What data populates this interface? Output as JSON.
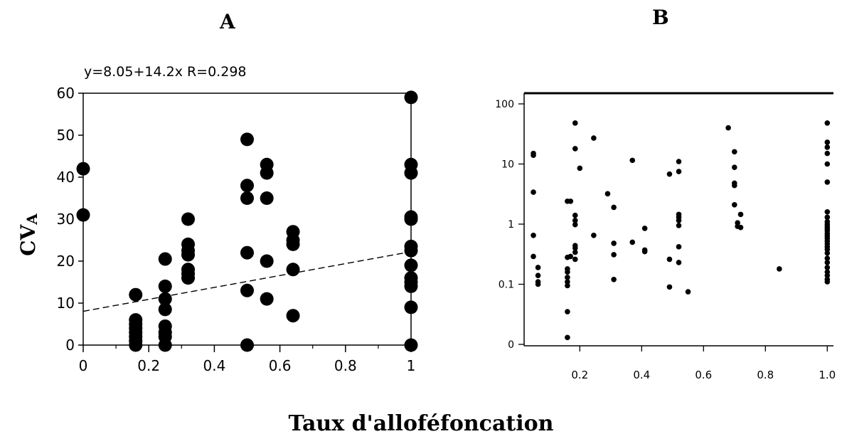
{
  "x_axis_title": "Taux d'alloféfoncation",
  "y_axis_title_main": "CV",
  "y_axis_title_sub": "A",
  "colors": {
    "points": "#000000",
    "axes": "#000000",
    "background": "#ffffff"
  },
  "chart_data": [
    {
      "panel": "A",
      "type": "scatter",
      "title": "A",
      "annotation": "y=8.05+14.2x R=0.298",
      "xlim": [
        0,
        1
      ],
      "ylim": [
        0,
        60
      ],
      "xticks": [
        0,
        0.2,
        0.4,
        0.6,
        0.8,
        1
      ],
      "xtick_labels": [
        "0",
        "0.2",
        "0.4",
        "0.6",
        "0.8",
        "1"
      ],
      "yticks": [
        0,
        10,
        20,
        30,
        40,
        50,
        60
      ],
      "ytick_labels": [
        "0",
        "10",
        "20",
        "30",
        "40",
        "50",
        "60"
      ],
      "grid": false,
      "regression": {
        "intercept": 8.05,
        "slope": 14.2,
        "r": 0.298,
        "style": "dashed"
      },
      "points": [
        [
          0,
          42
        ],
        [
          0,
          31
        ],
        [
          0.16,
          12
        ],
        [
          0.16,
          6
        ],
        [
          0.16,
          5
        ],
        [
          0.16,
          4
        ],
        [
          0.16,
          3
        ],
        [
          0.16,
          2
        ],
        [
          0.16,
          1
        ],
        [
          0.16,
          0
        ],
        [
          0.25,
          20.5
        ],
        [
          0.25,
          14
        ],
        [
          0.25,
          11
        ],
        [
          0.25,
          8.5
        ],
        [
          0.25,
          4.5
        ],
        [
          0.25,
          3
        ],
        [
          0.25,
          2
        ],
        [
          0.25,
          0
        ],
        [
          0.32,
          30
        ],
        [
          0.32,
          24
        ],
        [
          0.32,
          22.5
        ],
        [
          0.32,
          21.5
        ],
        [
          0.32,
          18
        ],
        [
          0.32,
          17
        ],
        [
          0.32,
          16
        ],
        [
          0.5,
          49
        ],
        [
          0.5,
          38
        ],
        [
          0.5,
          35
        ],
        [
          0.5,
          22
        ],
        [
          0.5,
          13
        ],
        [
          0.5,
          0
        ],
        [
          0.56,
          43
        ],
        [
          0.56,
          41
        ],
        [
          0.56,
          35
        ],
        [
          0.56,
          20
        ],
        [
          0.56,
          11
        ],
        [
          0.64,
          27
        ],
        [
          0.64,
          25
        ],
        [
          0.64,
          24
        ],
        [
          0.64,
          18
        ],
        [
          0.64,
          7
        ],
        [
          1,
          59
        ],
        [
          1,
          43
        ],
        [
          1,
          41
        ],
        [
          1,
          30.5
        ],
        [
          1,
          30
        ],
        [
          1,
          23.5
        ],
        [
          1,
          22.5
        ],
        [
          1,
          19
        ],
        [
          1,
          16
        ],
        [
          1,
          15
        ],
        [
          1,
          14
        ],
        [
          1,
          9
        ],
        [
          1,
          0
        ]
      ]
    },
    {
      "panel": "B",
      "type": "scatter",
      "title": "B",
      "xlim": [
        0.02,
        1.02
      ],
      "yscale": "log",
      "y_axis_note": "lowest tick labelled 0 at log position 0.01",
      "xticks": [
        0.2,
        0.4,
        0.6,
        0.8,
        1.0
      ],
      "xtick_labels": [
        "0.2",
        "0.4",
        "0.6",
        "0.8",
        "1.0"
      ],
      "yticks": [
        0.01,
        0.1,
        1,
        10,
        100
      ],
      "ytick_labels": [
        "0",
        "0.1",
        "1",
        "10",
        "100"
      ],
      "grid": false,
      "points": [
        [
          0.05,
          15
        ],
        [
          0.05,
          14
        ],
        [
          0.05,
          3.4
        ],
        [
          0.05,
          0.65
        ],
        [
          0.05,
          0.29
        ],
        [
          0.065,
          0.19
        ],
        [
          0.065,
          0.14
        ],
        [
          0.065,
          0.11
        ],
        [
          0.065,
          0.1
        ],
        [
          0.16,
          2.4
        ],
        [
          0.16,
          0.28
        ],
        [
          0.16,
          0.18
        ],
        [
          0.16,
          0.16
        ],
        [
          0.16,
          0.13
        ],
        [
          0.16,
          0.11
        ],
        [
          0.16,
          0.095
        ],
        [
          0.16,
          0.035
        ],
        [
          0.16,
          0.013
        ],
        [
          0.17,
          2.4
        ],
        [
          0.17,
          0.29
        ],
        [
          0.185,
          48
        ],
        [
          0.185,
          18
        ],
        [
          0.185,
          1.4
        ],
        [
          0.185,
          1.15
        ],
        [
          0.185,
          0.98
        ],
        [
          0.185,
          0.44
        ],
        [
          0.185,
          0.4
        ],
        [
          0.185,
          0.34
        ],
        [
          0.185,
          0.26
        ],
        [
          0.2,
          8.5
        ],
        [
          0.245,
          27
        ],
        [
          0.245,
          0.65
        ],
        [
          0.29,
          3.2
        ],
        [
          0.31,
          1.9
        ],
        [
          0.31,
          0.48
        ],
        [
          0.31,
          0.31
        ],
        [
          0.31,
          0.12
        ],
        [
          0.37,
          11.5
        ],
        [
          0.37,
          0.5
        ],
        [
          0.41,
          0.85
        ],
        [
          0.41,
          0.37
        ],
        [
          0.41,
          0.35
        ],
        [
          0.49,
          6.8
        ],
        [
          0.49,
          0.26
        ],
        [
          0.49,
          0.09
        ],
        [
          0.52,
          11
        ],
        [
          0.52,
          7.5
        ],
        [
          0.52,
          1.45
        ],
        [
          0.52,
          1.3
        ],
        [
          0.52,
          1.15
        ],
        [
          0.52,
          0.95
        ],
        [
          0.52,
          0.42
        ],
        [
          0.52,
          0.23
        ],
        [
          0.55,
          0.075
        ],
        [
          0.68,
          40
        ],
        [
          0.7,
          16
        ],
        [
          0.7,
          8.8
        ],
        [
          0.7,
          4.8
        ],
        [
          0.7,
          4.4
        ],
        [
          0.7,
          2.1
        ],
        [
          0.71,
          1.05
        ],
        [
          0.71,
          0.92
        ],
        [
          0.72,
          1.45
        ],
        [
          0.72,
          0.88
        ],
        [
          0.845,
          0.18
        ],
        [
          1.0,
          48
        ],
        [
          1.0,
          23
        ],
        [
          1.0,
          19
        ],
        [
          1.0,
          15
        ],
        [
          1.0,
          10
        ],
        [
          1.0,
          5
        ],
        [
          1.0,
          1.6
        ],
        [
          1.0,
          1.3
        ],
        [
          1.0,
          1.1
        ],
        [
          1.0,
          1.0
        ],
        [
          1.0,
          0.92
        ],
        [
          1.0,
          0.85
        ],
        [
          1.0,
          0.78
        ],
        [
          1.0,
          0.7
        ],
        [
          1.0,
          0.64
        ],
        [
          1.0,
          0.58
        ],
        [
          1.0,
          0.52
        ],
        [
          1.0,
          0.47
        ],
        [
          1.0,
          0.42
        ],
        [
          1.0,
          0.38
        ],
        [
          1.0,
          0.33
        ],
        [
          1.0,
          0.27
        ],
        [
          1.0,
          0.23
        ],
        [
          1.0,
          0.19
        ],
        [
          1.0,
          0.16
        ],
        [
          1.0,
          0.14
        ],
        [
          1.0,
          0.12
        ],
        [
          1.0,
          0.11
        ]
      ]
    }
  ]
}
